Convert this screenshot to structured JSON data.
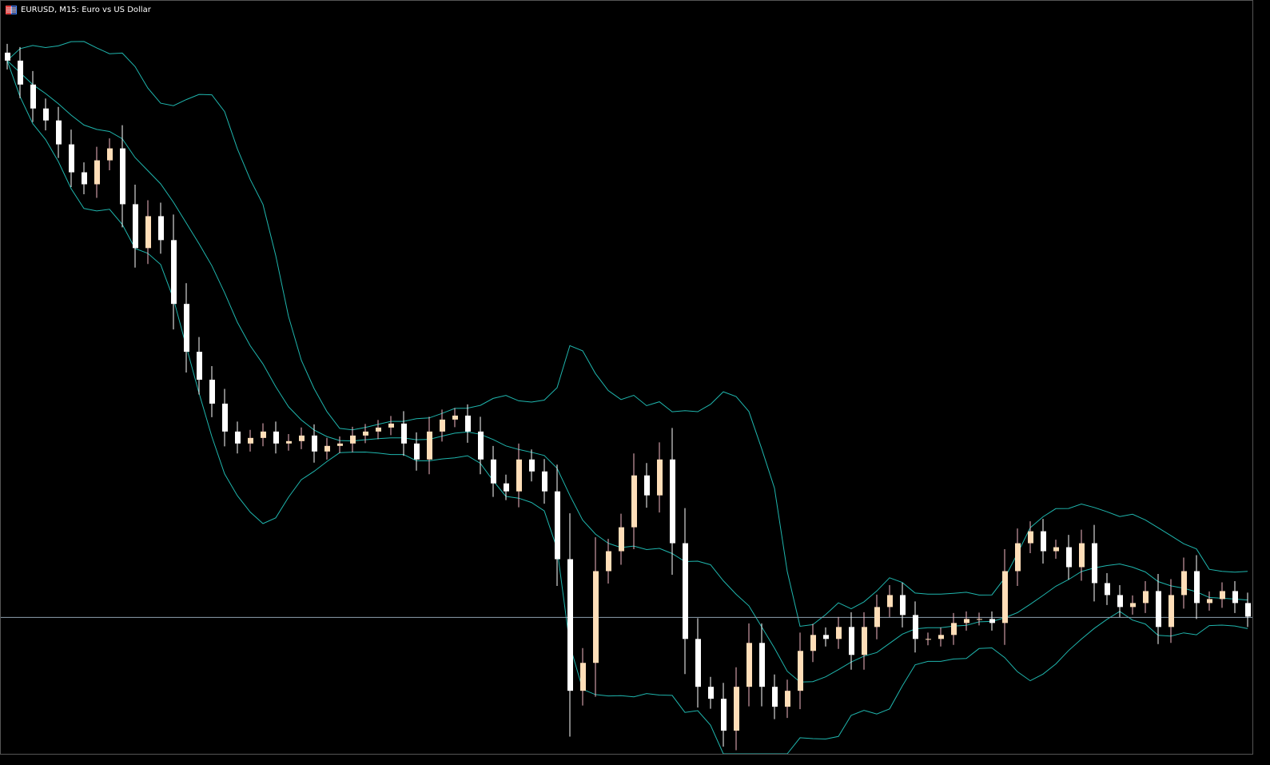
{
  "window": {
    "title": "EURUSD, M15:  Euro vs US Dollar",
    "icon": "chart-window-icon"
  },
  "colors": {
    "background": "#000000",
    "bull_body": "#FFDEB8",
    "bull_wick": "#F4B8C4",
    "bear_body": "#FFFFFF",
    "bear_wick": "#FFFFFF",
    "bands": "#1FB5AD",
    "price_line": "#8FA0B0",
    "last_tick": "#00DD00"
  },
  "chart_data": {
    "type": "candlestick",
    "symbol": "EURUSD",
    "timeframe": "M15",
    "indicator": "Bollinger Bands",
    "grid": false,
    "ylim": [
      0,
      94.4
    ],
    "closes": [
      86.9,
      83.9,
      80.9,
      79.4,
      76.4,
      72.9,
      71.4,
      74.4,
      75.9,
      68.9,
      63.4,
      67.4,
      64.4,
      56.4,
      50.4,
      46.9,
      43.9,
      40.4,
      38.9,
      39.6,
      40.4,
      38.9,
      39.2,
      39.9,
      37.9,
      38.6,
      38.9,
      39.9,
      40.4,
      40.9,
      41.4,
      38.9,
      36.9,
      40.4,
      41.9,
      42.4,
      40.4,
      36.9,
      33.9,
      32.9,
      36.9,
      35.4,
      32.9,
      24.4,
      7.9,
      11.4,
      22.9,
      25.4,
      28.4,
      34.9,
      32.4,
      36.9,
      26.4,
      14.4,
      8.4,
      6.9,
      2.9,
      8.4,
      13.9,
      8.4,
      5.9,
      7.9,
      12.9,
      14.9,
      14.4,
      15.9,
      12.4,
      15.9,
      18.4,
      19.9,
      17.4,
      14.4,
      14.4,
      14.9,
      16.4,
      16.9,
      16.9,
      16.4,
      22.9,
      26.4,
      27.9,
      25.4,
      25.9,
      23.4,
      26.4,
      21.4,
      19.9,
      18.4,
      18.9,
      20.4,
      15.9,
      19.9,
      22.9,
      18.9,
      19.4,
      20.4,
      18.9,
      17.2
    ],
    "current_price": 17.1
  }
}
